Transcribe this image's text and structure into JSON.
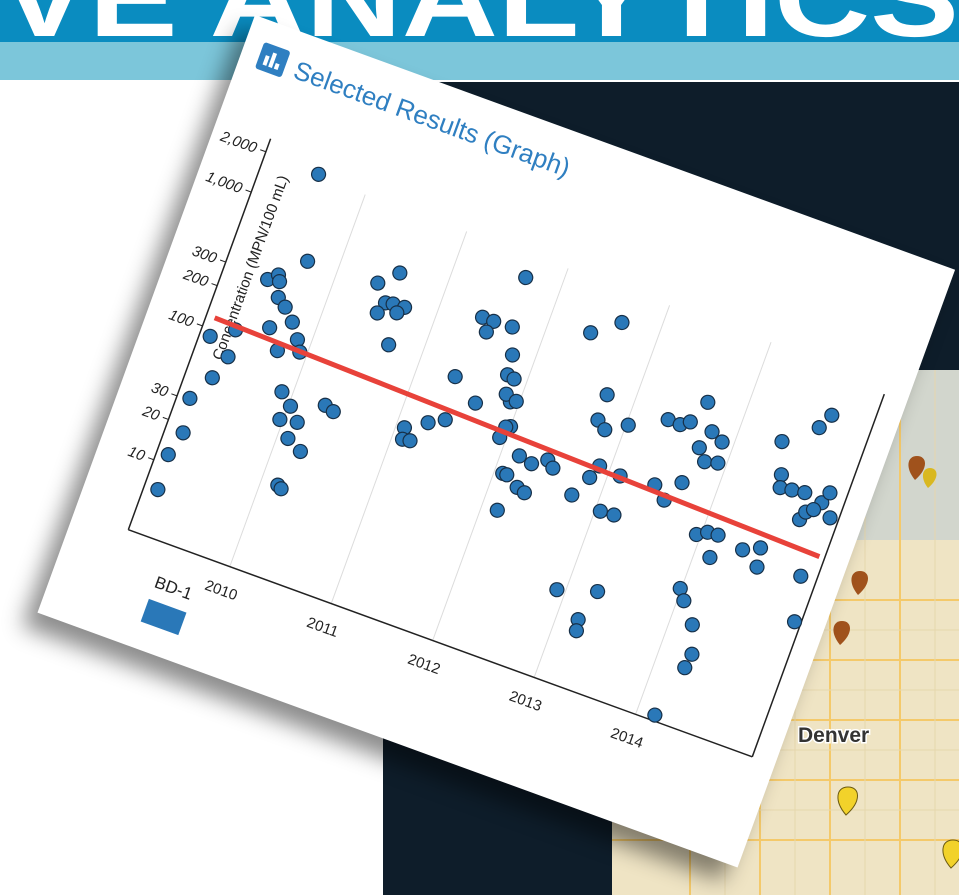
{
  "banner": {
    "text": "VE ANALYTICS"
  },
  "chart_data": {
    "type": "scatter",
    "title": "Selected Results (Graph)",
    "y_label": "Concentration (MPN/100 mL)",
    "log_scale": true,
    "grid": "x",
    "x": [
      2009.13,
      2009.11,
      2009.17,
      2009.12,
      2009.1,
      2009.25,
      2009.32,
      2009.3,
      2009.42,
      2009.5,
      2009.53,
      2009.57,
      2009.66,
      2009.59,
      2009.77,
      2009.87,
      2009.93,
      2009.73,
      2009.9,
      2010.02,
      2009.97,
      2010.13,
      2010.1,
      2010.25,
      2010.16,
      2010.2,
      2009.71,
      2009.53,
      2010.32,
      2010.41,
      2010.39,
      2010.55,
      2010.52,
      2010.59,
      2010.7,
      2010.48,
      2010.65,
      2010.68,
      2011.08,
      2011.1,
      2011.17,
      2011.27,
      2011.41,
      2011.36,
      2011.62,
      2011.41,
      2011.52,
      2011.49,
      2011.7,
      2011.79,
      2011.81,
      2011.88,
      2011.92,
      2011.86,
      2011.97,
      2011.66,
      2011.94,
      2012.0,
      2011.96,
      2012.08,
      2012.12,
      2012.15,
      2012.25,
      2012.33,
      2012.17,
      2012.3,
      2012.43,
      2012.5,
      2012.75,
      2012.92,
      2013.2,
      2013.22,
      2013.28,
      2012.4,
      2012.64,
      2012.74,
      2012.74,
      2012.83,
      2013.02,
      2012.9,
      2012.85,
      2013.11,
      2013.05,
      2013.18,
      2013.44,
      2013.57,
      2013.67,
      2014.17,
      2013.99,
      2014.06,
      2014.21,
      2014.3,
      2014.28,
      2013.35,
      2013.47,
      2013.55,
      2013.64,
      2013.71,
      2013.77,
      2013.89,
      2013.8,
      2013.92,
      2013.96,
      2014.05,
      2014.15,
      2014.15,
      2014.41,
      2014.56,
      2014.59,
      2014.41,
      2014.51,
      2014.54,
      2014.65,
      2014.77,
      2014.95,
      2014.99,
      2014.76,
      2014.69,
      2014.81,
      2014.84,
      2015.09,
      2015.0,
      2014.9,
      2015.07
    ],
    "series": [
      {
        "name": "BD-1",
        "color": "#2a78b8",
        "values": [
          6.5,
          11.7,
          17.7,
          31,
          89,
          48,
          72,
          113,
          290,
          330,
          300,
          234,
          210,
          141,
          174,
          137,
          115,
          104,
          57,
          48,
          37,
          39,
          29,
          25.5,
          13.5,
          13,
          477,
          1900,
          59,
          56,
          505,
          665,
          390,
          400,
          405,
          320,
          357,
          210,
          65,
          54,
          55,
          80,
          92,
          187,
          140,
          536,
          536,
          438,
          545,
          357,
          257,
          250,
          173,
          190,
          180,
          1245,
          95,
          119,
          115,
          56,
          56,
          31,
          49,
          47,
          80,
          76,
          88,
          80,
          59,
          12.9,
          9.2,
          7.7,
          15.7,
          770,
          1070,
          329,
          213,
          191,
          233,
          107,
          85,
          103,
          54,
          55,
          109,
          91,
          131,
          3.3,
          26,
          22,
          16,
          10.2,
          8,
          316,
          313,
          345,
          512,
          245,
          335,
          303,
          204,
          215,
          64.5,
          71,
          72,
          49,
          66,
          75,
          55,
          425,
          256,
          209,
          215,
          222,
          209,
          254,
          835,
          645,
          143,
          166,
          29.5,
          61,
          180,
          174
        ]
      }
    ],
    "trend_line": {
      "color": "#e8423a",
      "x": [
        2009.08,
        2015.1
      ],
      "values": [
        121,
        91
      ]
    },
    "xlim": [
      2009.0,
      2015.15
    ],
    "xticks": [
      2010,
      2011,
      2012,
      2013,
      2014
    ],
    "ylim": [
      3,
      2500
    ],
    "yticks": [
      10,
      20,
      30,
      100,
      200,
      300,
      {
        "value": 1000,
        "label": "1,000"
      },
      {
        "value": 2000,
        "label": "2,000"
      }
    ]
  },
  "map": {
    "label": "Denver"
  }
}
